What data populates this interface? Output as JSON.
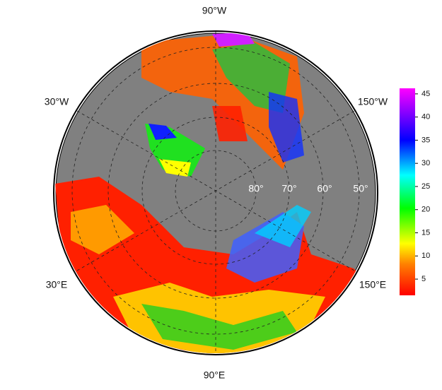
{
  "map": {
    "longitude_labels": {
      "top": "90°W",
      "upper_left": "30°W",
      "upper_right": "150°W",
      "lower_left": "30°E",
      "lower_right": "150°E",
      "bottom": "90°E"
    },
    "latitude_labels": [
      "80°",
      "70°",
      "60°",
      "50°"
    ],
    "colorbar": {
      "lim": [
        1.5,
        46.2
      ],
      "ticks": [
        5,
        10,
        15,
        20,
        25,
        30,
        35,
        40,
        45
      ]
    }
  }
}
